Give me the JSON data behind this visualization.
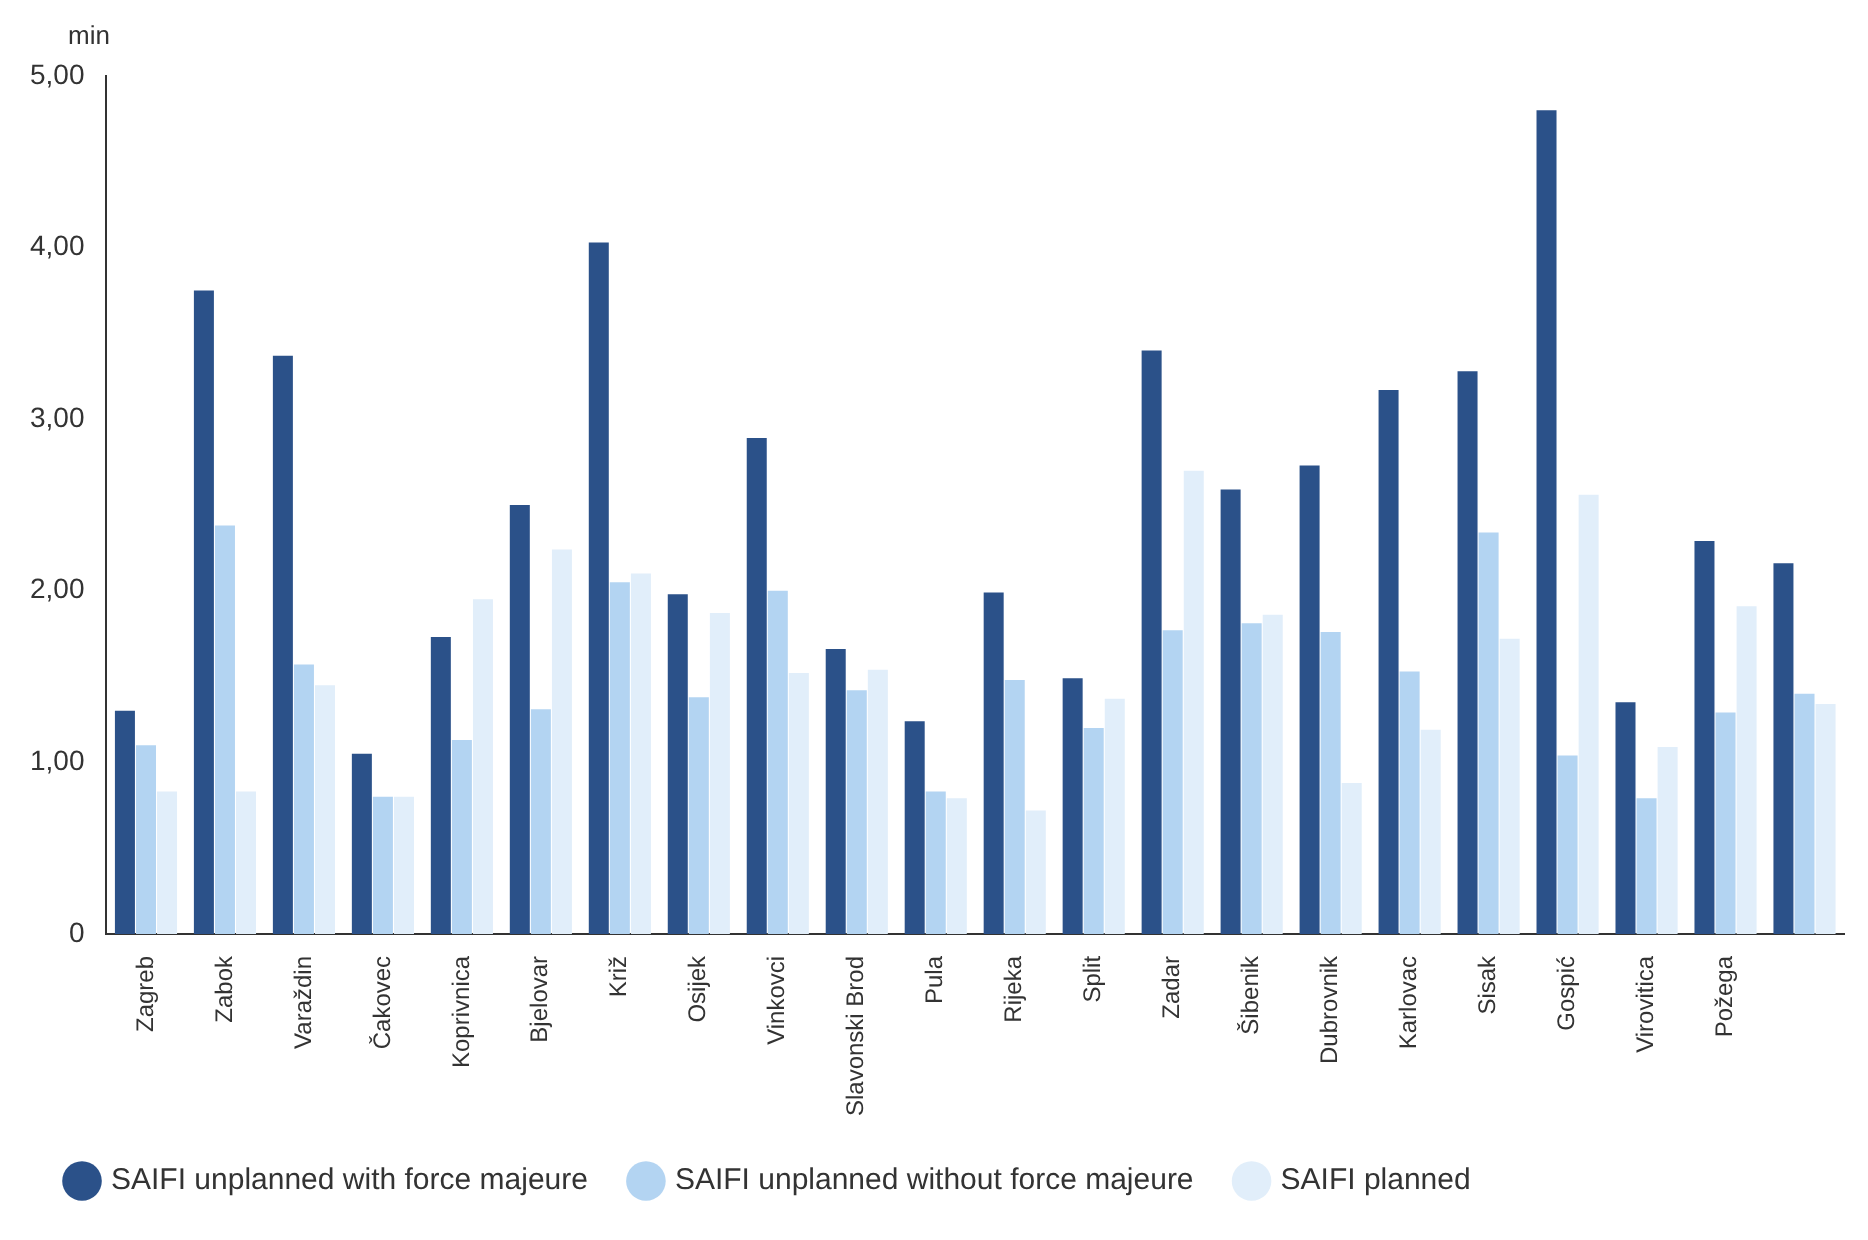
{
  "chart_data": {
    "type": "bar",
    "ylabel": "min",
    "categories": [
      "Zagreb",
      "Zabok",
      "Varaždin",
      "Čakovec",
      "Koprivnica",
      "Bjelovar",
      "Križ",
      "Osijek",
      "Vinkovci",
      "Slavonski Brod",
      "Pula",
      "Rijeka",
      "Split",
      "Zadar",
      "Šibenik",
      "Dubrovnik",
      "Karlovac",
      "Sisak",
      "Gospić",
      "Virovitica",
      "Požega",
      null
    ],
    "series": [
      {
        "name": "SAIFI unplanned with force majeure",
        "color": "#2b5189",
        "values": [
          1.3,
          3.75,
          3.37,
          1.05,
          1.73,
          2.5,
          4.03,
          1.98,
          2.89,
          1.66,
          1.24,
          1.99,
          1.49,
          3.4,
          2.59,
          2.73,
          3.17,
          3.28,
          4.8,
          1.35,
          2.29,
          2.16
        ]
      },
      {
        "name": "SAIFI unplanned without force majeure",
        "color": "#b3d4f2",
        "values": [
          1.1,
          2.38,
          1.57,
          0.8,
          1.13,
          1.31,
          2.05,
          1.38,
          2.0,
          1.42,
          0.83,
          1.48,
          1.2,
          1.77,
          1.81,
          1.76,
          1.53,
          2.34,
          1.04,
          0.79,
          1.29,
          1.4
        ]
      },
      {
        "name": "SAIFI planned",
        "color": "#e1eefa",
        "values": [
          0.83,
          0.83,
          1.45,
          0.8,
          1.95,
          2.24,
          2.1,
          1.87,
          1.52,
          1.54,
          0.79,
          0.72,
          1.37,
          2.7,
          1.86,
          0.88,
          1.19,
          1.72,
          2.56,
          1.09,
          1.91,
          1.34
        ]
      }
    ],
    "ylim": [
      0,
      5
    ],
    "yticks": [
      {
        "value": 0,
        "label": "0"
      },
      {
        "value": 1,
        "label": "1,00"
      },
      {
        "value": 2,
        "label": "2,00"
      },
      {
        "value": 3,
        "label": "3,00"
      },
      {
        "value": 4,
        "label": "4,00"
      },
      {
        "value": 5,
        "label": "5,00"
      }
    ],
    "grid": false,
    "legend": "bottom"
  }
}
